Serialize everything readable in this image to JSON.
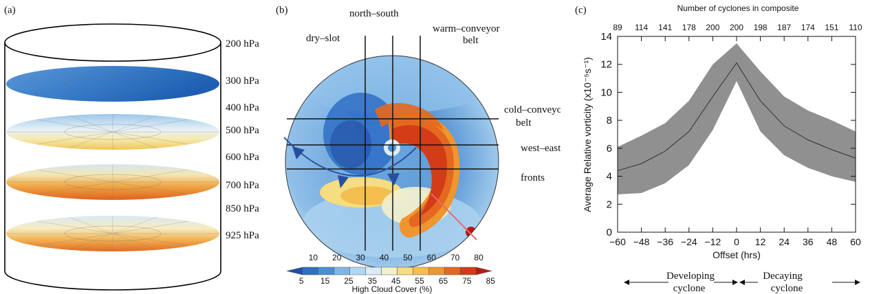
{
  "panel_a": {
    "label": "(a)",
    "levels": [
      "200 hPa",
      "300 hPa",
      "400 hPa",
      "500 hPa",
      "600 hPa",
      "700 hPa",
      "850 hPa",
      "925 hPa"
    ]
  },
  "panel_b": {
    "label": "(b)",
    "sectors": {
      "north_south": "north–south",
      "dry_slot": "dry–slot",
      "warm_conveyor_1": "warm–conveyor",
      "warm_conveyor_2": "belt",
      "cold_conveyor_1": "cold–conveyor",
      "cold_conveyor_2": "belt",
      "west_east": "west–east",
      "fronts": "fronts"
    },
    "colorbar": {
      "upper_ticks": [
        "10",
        "20",
        "30",
        "40",
        "50",
        "60",
        "70",
        "80"
      ],
      "lower_ticks": [
        "5",
        "15",
        "25",
        "35",
        "45",
        "55",
        "65",
        "75",
        "85"
      ],
      "title": "High Cloud Cover (%)",
      "colors": [
        "#1f4fa3",
        "#2f6fc4",
        "#4a8fd6",
        "#7fb6e6",
        "#b4d6f1",
        "#dcecf7",
        "#f3f0cc",
        "#f6dd82",
        "#f4bf4f",
        "#ef962f",
        "#e4681f",
        "#d43b17",
        "#b81912"
      ]
    }
  },
  "panel_c": {
    "label": "(c)",
    "chart_data": {
      "type": "line",
      "title": "Number of cyclones in composite",
      "xlabel": "Offset (hrs)",
      "ylabel": "Average Relative vorticity (x10⁻⁵s⁻¹)",
      "xlim": [
        -60,
        60
      ],
      "ylim": [
        0,
        14
      ],
      "x_ticks": [
        "−60",
        "−48",
        "−36",
        "−24",
        "−12",
        "0",
        "12",
        "24",
        "36",
        "48",
        "60"
      ],
      "y_ticks": [
        "0",
        "2",
        "4",
        "6",
        "8",
        "10",
        "12",
        "14"
      ],
      "top_ticks": [
        "89",
        "114",
        "141",
        "178",
        "200",
        "200",
        "198",
        "187",
        "174",
        "151",
        "110"
      ],
      "x": [
        -60,
        -48,
        -36,
        -24,
        -12,
        0,
        12,
        24,
        36,
        48,
        60
      ],
      "mean": [
        4.4,
        4.9,
        5.8,
        7.2,
        9.7,
        12.1,
        9.4,
        7.6,
        6.6,
        5.9,
        5.3
      ],
      "upper": [
        6.1,
        6.9,
        7.8,
        9.4,
        12.0,
        13.5,
        11.5,
        9.7,
        8.7,
        8.0,
        7.2
      ],
      "lower": [
        2.7,
        2.8,
        3.5,
        4.8,
        7.3,
        10.8,
        7.2,
        5.5,
        4.6,
        4.0,
        3.6
      ],
      "band_color": "#909090",
      "line_color": "#333333"
    },
    "phases": {
      "developing_1": "Developing",
      "developing_2": "cyclone",
      "decaying_1": "Decaying",
      "decaying_2": "cyclone"
    }
  }
}
